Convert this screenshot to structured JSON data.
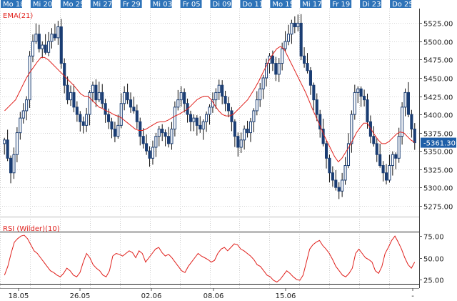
{
  "header_days": [
    "Mo 18",
    "Mi 20",
    "Mo 25",
    "Mi 27",
    "Fr 29",
    "Mi 03",
    "Fr 05",
    "Di 09",
    "Do 11",
    "Mo 15",
    "Mi 17",
    "Fr 19",
    "Di 23",
    "Do 25"
  ],
  "date_axis": [
    "18.05",
    "26.05",
    "02.06",
    "08.06",
    "15.06",
    "-"
  ],
  "colors": {
    "candle": "#1a3d73",
    "ema": "#e0201c",
    "rsi": "#e0201c",
    "header": "#2e73b8",
    "price_badge": "#1f5fa8"
  },
  "chart_data": [
    {
      "type": "candlestick",
      "title": "EMA(21)",
      "y_ticks": [
        "5525.00",
        "5500.00",
        "5475.00",
        "5450.00",
        "5425.00",
        "5400.00",
        "5375.00",
        "5350.00",
        "5325.00",
        "5300.00",
        "5275.00"
      ],
      "ylim": [
        5260,
        5545
      ],
      "last_price": "5361.30",
      "grid": true,
      "ema_series_name": "EMA(21)",
      "close": [
        5365,
        5340,
        5320,
        5345,
        5375,
        5395,
        5405,
        5420,
        5480,
        5500,
        5510,
        5490,
        5495,
        5485,
        5500,
        5510,
        5505,
        5520,
        5470,
        5440,
        5420,
        5430,
        5410,
        5400,
        5390,
        5385,
        5400,
        5430,
        5440,
        5420,
        5430,
        5415,
        5400,
        5390,
        5380,
        5370,
        5385,
        5415,
        5430,
        5420,
        5410,
        5405,
        5390,
        5370,
        5360,
        5350,
        5340,
        5355,
        5370,
        5380,
        5375,
        5370,
        5360,
        5380,
        5410,
        5420,
        5430,
        5415,
        5400,
        5390,
        5395,
        5385,
        5380,
        5390,
        5400,
        5410,
        5420,
        5430,
        5440,
        5425,
        5415,
        5405,
        5390,
        5370,
        5355,
        5365,
        5380,
        5375,
        5390,
        5405,
        5420,
        5435,
        5450,
        5470,
        5480,
        5470,
        5455,
        5470,
        5490,
        5500,
        5510,
        5525,
        5520,
        5525,
        5480,
        5470,
        5460,
        5440,
        5420,
        5400,
        5380,
        5360,
        5340,
        5320,
        5310,
        5300,
        5295,
        5310,
        5330,
        5360,
        5400,
        5430,
        5435,
        5425,
        5420,
        5390,
        5370,
        5360,
        5345,
        5330,
        5320,
        5310,
        5330,
        5345,
        5340,
        5370,
        5410,
        5430,
        5400,
        5380,
        5361.3
      ],
      "ema": [
        5405,
        5410,
        5415,
        5420,
        5430,
        5440,
        5450,
        5458,
        5465,
        5472,
        5478,
        5478,
        5475,
        5470,
        5465,
        5460,
        5455,
        5450,
        5445,
        5440,
        5434,
        5428,
        5425,
        5425,
        5420,
        5415,
        5410,
        5408,
        5405,
        5403,
        5400,
        5398,
        5396,
        5392,
        5388,
        5384,
        5380,
        5378,
        5378,
        5380,
        5383,
        5386,
        5389,
        5390,
        5390,
        5392,
        5395,
        5398,
        5400,
        5403,
        5406,
        5410,
        5415,
        5420,
        5423,
        5425,
        5425,
        5420,
        5412,
        5405,
        5400,
        5398,
        5398,
        5400,
        5405,
        5410,
        5415,
        5420,
        5428,
        5436,
        5445,
        5455,
        5465,
        5475,
        5483,
        5490,
        5493,
        5490,
        5480,
        5470,
        5460,
        5450,
        5440,
        5430,
        5418,
        5406,
        5395,
        5384,
        5372,
        5362,
        5352,
        5342,
        5335,
        5340,
        5348,
        5356,
        5365,
        5375,
        5382,
        5388,
        5388,
        5380,
        5372,
        5365,
        5360,
        5360,
        5363,
        5368,
        5373,
        5376,
        5375,
        5370,
        5365,
        5362
      ]
    },
    {
      "type": "line",
      "title": "RSI (Wilder)(10)",
      "y_ticks": [
        "75.00",
        "50.00",
        "25.00"
      ],
      "ylim": [
        15,
        90
      ],
      "levels": [
        80,
        20
      ],
      "series_name": "RSI (Wilder)(10)",
      "values": [
        30,
        40,
        55,
        68,
        72,
        75,
        76,
        72,
        65,
        58,
        55,
        50,
        45,
        40,
        35,
        33,
        30,
        28,
        32,
        38,
        35,
        30,
        28,
        33,
        45,
        55,
        50,
        42,
        38,
        35,
        30,
        28,
        35,
        52,
        55,
        54,
        52,
        55,
        58,
        56,
        50,
        58,
        55,
        45,
        50,
        55,
        60,
        62,
        56,
        52,
        54,
        50,
        45,
        40,
        35,
        33,
        40,
        45,
        50,
        55,
        52,
        50,
        48,
        45,
        47,
        55,
        60,
        62,
        58,
        62,
        66,
        65,
        60,
        58,
        55,
        52,
        48,
        42,
        40,
        35,
        30,
        28,
        24,
        22,
        25,
        30,
        35,
        32,
        28,
        25,
        24,
        30,
        45,
        60,
        65,
        68,
        70,
        64,
        60,
        55,
        48,
        40,
        35,
        30,
        28,
        32,
        38,
        55,
        60,
        55,
        50,
        48,
        45,
        35,
        32,
        40,
        55,
        62,
        70,
        75,
        68,
        60,
        50,
        42,
        38,
        45
      ]
    }
  ]
}
